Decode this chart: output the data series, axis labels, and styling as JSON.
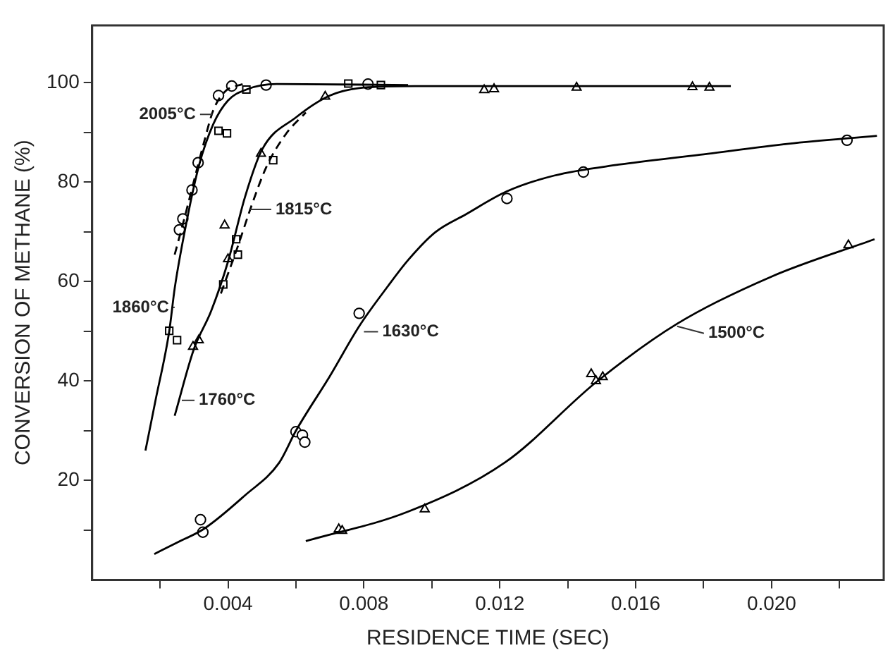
{
  "chart_data": {
    "type": "scatter",
    "xlabel": "RESIDENCE TIME (SEC)",
    "ylabel": "CONVERSION OF METHANE (%)",
    "xlim": [
      0,
      0.0233
    ],
    "ylim": [
      0,
      111.5
    ],
    "xticks": [
      {
        "value": 0.002,
        "label": null
      },
      0.004,
      {
        "value": 0.006,
        "label": null
      },
      0.008,
      {
        "value": 0.01,
        "label": null
      },
      0.012,
      {
        "value": 0.014,
        "label": null
      },
      0.016,
      {
        "value": 0.018,
        "label": null
      },
      {
        "value": 0.02,
        "label": "0.020"
      },
      {
        "value": 0.022,
        "label": null
      }
    ],
    "yticks": [
      {
        "value": 10,
        "label": null
      },
      20,
      {
        "value": 30,
        "label": null
      },
      40,
      {
        "value": 50,
        "label": null
      },
      60,
      {
        "value": 70,
        "label": null
      },
      80,
      {
        "value": 90,
        "label": null
      },
      100
    ],
    "grid": false,
    "legend": false,
    "series": [
      {
        "type": "line",
        "color": "#000000",
        "line_style": "dashed",
        "x": [
          0.00243,
          0.00272,
          0.003,
          0.00329,
          0.00357,
          0.00393,
          0.00443
        ],
        "values": [
          65.4,
          72.8,
          80.3,
          87.9,
          94.5,
          98.3,
          99.7
        ]
      },
      {
        "type": "line",
        "color": "#000000",
        "line_style": "solid",
        "x": [
          0.00157,
          0.00186,
          0.00227,
          0.00243,
          0.00272,
          0.00314,
          0.00357,
          0.004,
          0.00454,
          0.00543,
          0.0093
        ],
        "values": [
          26,
          35.9,
          50,
          58.6,
          69.9,
          83.2,
          91.7,
          96.4,
          98.6,
          99.7,
          99.5
        ]
      },
      {
        "type": "line",
        "color": "#000000",
        "line_style": "solid",
        "x": [
          0.00243,
          0.003,
          0.0035,
          0.004,
          0.0045,
          0.005,
          0.006,
          0.007,
          0.008,
          0.0095,
          0.0188
        ],
        "values": [
          33,
          46.5,
          54,
          64,
          77,
          86.5,
          93,
          97.4,
          99,
          99.3,
          99.3
        ]
      },
      {
        "type": "line",
        "color": "#000000",
        "line_style": "dashed",
        "x": [
          0.00379,
          0.00429,
          0.00471,
          0.00514,
          0.00572,
          0.00629
        ],
        "values": [
          57.6,
          67.1,
          75.6,
          83.2,
          89.8,
          94
        ]
      },
      {
        "type": "line",
        "color": "#000000",
        "line_style": "solid",
        "x": [
          0.00183,
          0.0025,
          0.0033,
          0.0045,
          0.0055,
          0.006,
          0.007,
          0.00786,
          0.0087,
          0.0093,
          0.0101,
          0.011,
          0.0122,
          0.0136,
          0.0155,
          0.0179,
          0.0205,
          0.0231
        ],
        "values": [
          5.2,
          7.5,
          10.3,
          17,
          23.5,
          30,
          41,
          51,
          59,
          64.3,
          69.9,
          73.5,
          78.1,
          81.3,
          83.5,
          85.5,
          87.7,
          89.3
        ]
      },
      {
        "type": "line",
        "color": "#000000",
        "line_style": "solid",
        "x": [
          0.00629,
          0.00929,
          0.01215,
          0.01486,
          0.01722,
          0.02,
          0.02303
        ],
        "values": [
          7.8,
          13.7,
          23.6,
          39.9,
          51.5,
          61,
          68.5
        ]
      },
      {
        "type": "scatter",
        "color": "#000000",
        "marker": "circle",
        "x": [
          0.00257,
          0.00267,
          0.00294,
          0.00312,
          0.00372,
          0.00411,
          0.00512,
          0.00812
        ],
        "values": [
          70.4,
          72.6,
          78.4,
          83.9,
          97.4,
          99.3,
          99.5,
          99.7
        ]
      },
      {
        "type": "scatter",
        "color": "#000000",
        "marker": "square",
        "x": [
          0.00227,
          0.0025,
          0.00372,
          0.00397,
          0.00454,
          0.00754,
          0.0085
        ],
        "values": [
          50.1,
          48.2,
          90.3,
          89.8,
          98.6,
          99.8,
          99.5
        ]
      },
      {
        "type": "scatter",
        "color": "#000000",
        "marker": "triangle",
        "x": [
          0.00297,
          0.00314,
          0.0039,
          0.004,
          0.00497,
          0.00686,
          0.01154,
          0.01183,
          0.01426,
          0.01767,
          0.01817
        ],
        "values": [
          46.9,
          48.2,
          71.3,
          64.5,
          85.7,
          97.2,
          98.5,
          98.7,
          99,
          99.1,
          99
        ]
      },
      {
        "type": "scatter",
        "color": "#000000",
        "marker": "square",
        "x": [
          0.00386,
          0.00429,
          0.00424,
          0.00533
        ],
        "values": [
          59.4,
          65.4,
          68.5,
          84.4
        ]
      },
      {
        "type": "scatter",
        "color": "#000000",
        "marker": "circle",
        "x": [
          0.00319,
          0.00326,
          0.006,
          0.00619,
          0.00626,
          0.00786,
          0.01221,
          0.01446,
          0.02222
        ],
        "values": [
          12.1,
          9.6,
          29.8,
          29.1,
          27.7,
          53.6,
          76.7,
          82,
          88.4
        ]
      },
      {
        "type": "scatter",
        "color": "#000000",
        "marker": "triangle",
        "x": [
          0.00726,
          0.00736,
          0.00979,
          0.01469,
          0.01483,
          0.01503,
          0.02226
        ],
        "values": [
          10.2,
          9.9,
          14.2,
          41.4,
          40,
          40.8,
          67.3
        ]
      }
    ],
    "annotations": [
      {
        "text": "2005°C",
        "x": 0.00355,
        "y": 93.6
      },
      {
        "text": "1860°C",
        "x": 0.00243,
        "y": 54.8
      },
      {
        "text": "1760°C",
        "x": 0.00264,
        "y": 36.1
      },
      {
        "text": "1815°C",
        "x": 0.00465,
        "y": 74.5
      },
      {
        "text": "1630°C",
        "x": 0.008,
        "y": 49.9
      },
      {
        "text": "1500°C",
        "x": 0.01722,
        "y": 51
      }
    ]
  }
}
